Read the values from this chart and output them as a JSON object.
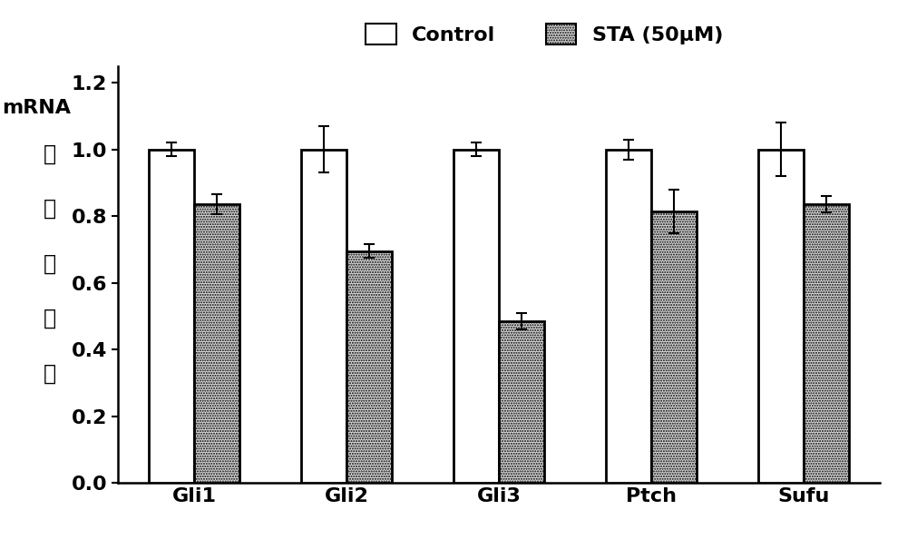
{
  "categories": [
    "Gli1",
    "Gli2",
    "Gli3",
    "Ptch",
    "Sufu"
  ],
  "control_values": [
    1.0,
    1.0,
    1.0,
    1.0,
    1.0
  ],
  "control_errors": [
    0.02,
    0.07,
    0.02,
    0.03,
    0.08
  ],
  "sta_values": [
    0.835,
    0.695,
    0.485,
    0.815,
    0.835
  ],
  "sta_errors": [
    0.03,
    0.02,
    0.025,
    0.065,
    0.025
  ],
  "control_color": "#FFFFFF",
  "sta_color": "#D8D8D8",
  "bar_edgecolor": "#000000",
  "bar_width": 0.3,
  "ylim": [
    0,
    1.25
  ],
  "yticks": [
    0.0,
    0.2,
    0.4,
    0.6,
    0.8,
    1.0,
    1.2
  ],
  "ylabel_line1": "mRNA",
  "ylabel_line2": "相\n对\n表\n达\n量",
  "legend_control": "Control",
  "legend_sta": "STA (50μM)",
  "legend_fontsize": 16,
  "tick_label_fontsize": 16,
  "ylabel_fontsize": 16,
  "errorbar_capsize": 4,
  "errorbar_linewidth": 1.5,
  "errorbar_capthick": 1.5,
  "background_color": "#FFFFFF",
  "spine_linewidth": 1.8
}
